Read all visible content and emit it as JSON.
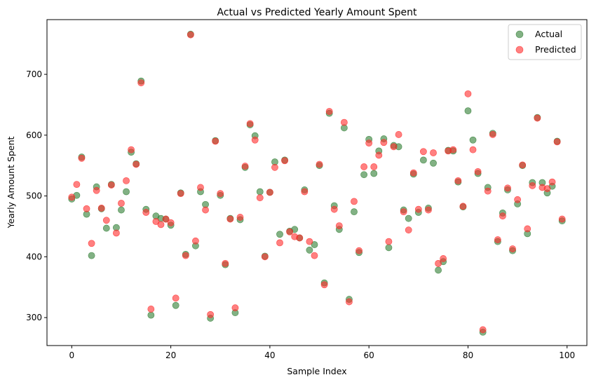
{
  "chart_data": {
    "type": "scatter",
    "title": "Actual vs Predicted Yearly Amount Spent",
    "xlabel": "Sample Index",
    "ylabel": "Yearly Amount Spent",
    "xlim": [
      -5,
      104
    ],
    "ylim": [
      254,
      790
    ],
    "xticks": [
      0,
      20,
      40,
      60,
      80,
      100
    ],
    "yticks": [
      300,
      400,
      500,
      600,
      700
    ],
    "legend_position": "top-right",
    "series": [
      {
        "name": "Actual",
        "color": "#2e7d32",
        "x": [
          0,
          1,
          2,
          3,
          4,
          5,
          6,
          7,
          8,
          9,
          10,
          11,
          12,
          13,
          14,
          15,
          16,
          17,
          18,
          19,
          20,
          21,
          22,
          23,
          24,
          25,
          26,
          27,
          28,
          29,
          30,
          31,
          32,
          33,
          34,
          35,
          36,
          37,
          38,
          39,
          40,
          41,
          42,
          43,
          44,
          45,
          46,
          47,
          48,
          49,
          50,
          51,
          52,
          53,
          54,
          55,
          56,
          57,
          58,
          59,
          60,
          61,
          62,
          63,
          64,
          65,
          66,
          67,
          68,
          69,
          70,
          71,
          72,
          73,
          74,
          75,
          76,
          77,
          78,
          79,
          80,
          81,
          82,
          83,
          84,
          85,
          86,
          87,
          88,
          89,
          90,
          91,
          92,
          93,
          94,
          95,
          96,
          97,
          98,
          99
        ],
        "y": [
          495,
          501,
          564,
          470,
          402,
          515,
          479,
          447,
          519,
          448,
          477,
          507,
          572,
          553,
          689,
          478,
          304,
          467,
          463,
          462,
          452,
          320,
          505,
          404,
          766,
          418,
          507,
          486,
          299,
          591,
          501,
          387,
          463,
          308,
          461,
          547,
          617,
          599,
          507,
          401,
          506,
          556,
          437,
          559,
          442,
          445,
          431,
          510,
          411,
          420,
          550,
          357,
          636,
          484,
          445,
          612,
          330,
          474,
          407,
          535,
          593,
          537,
          574,
          594,
          415,
          583,
          581,
          477,
          463,
          536,
          473,
          559,
          480,
          554,
          378,
          392,
          575,
          574,
          523,
          482,
          640,
          592,
          537,
          276,
          514,
          603,
          425,
          472,
          510,
          410,
          487,
          550,
          438,
          522,
          629,
          522,
          505,
          516,
          590,
          459
        ]
      },
      {
        "name": "Predicted",
        "color": "#ff2b2b",
        "x": [
          0,
          1,
          2,
          3,
          4,
          5,
          6,
          7,
          8,
          9,
          10,
          11,
          12,
          13,
          14,
          15,
          16,
          17,
          18,
          19,
          20,
          21,
          22,
          23,
          24,
          25,
          26,
          27,
          28,
          29,
          30,
          31,
          32,
          33,
          34,
          35,
          36,
          37,
          38,
          39,
          40,
          41,
          42,
          43,
          44,
          45,
          46,
          47,
          48,
          49,
          50,
          51,
          52,
          53,
          54,
          55,
          56,
          57,
          58,
          59,
          60,
          61,
          62,
          63,
          64,
          65,
          66,
          67,
          68,
          69,
          70,
          71,
          72,
          73,
          74,
          75,
          76,
          77,
          78,
          79,
          80,
          81,
          82,
          83,
          84,
          85,
          86,
          87,
          88,
          89,
          90,
          91,
          92,
          93,
          94,
          95,
          96,
          97,
          98,
          99
        ],
        "y": [
          498,
          519,
          562,
          479,
          422,
          509,
          480,
          460,
          518,
          439,
          488,
          525,
          576,
          552,
          686,
          473,
          314,
          458,
          453,
          462,
          456,
          332,
          504,
          402,
          765,
          426,
          514,
          477,
          305,
          590,
          504,
          389,
          462,
          316,
          465,
          549,
          619,
          592,
          497,
          400,
          506,
          547,
          423,
          558,
          441,
          433,
          431,
          507,
          425,
          402,
          552,
          354,
          639,
          478,
          451,
          621,
          326,
          491,
          410,
          548,
          587,
          548,
          567,
          588,
          425,
          581,
          601,
          474,
          444,
          538,
          478,
          573,
          477,
          571,
          389,
          397,
          574,
          576,
          525,
          483,
          668,
          576,
          540,
          280,
          508,
          601,
          428,
          467,
          513,
          413,
          494,
          551,
          446,
          517,
          628,
          514,
          512,
          523,
          589,
          462
        ]
      }
    ]
  }
}
